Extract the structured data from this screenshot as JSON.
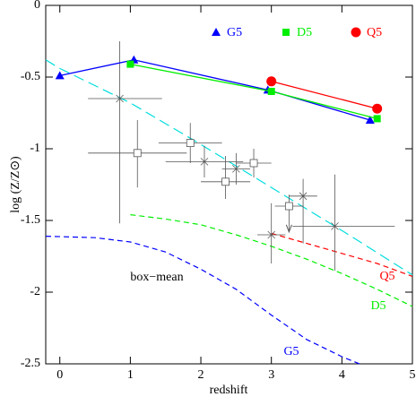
{
  "chart_data": {
    "type": "line",
    "xlabel": "redshift",
    "ylabel": "log (Z/Z⊙)",
    "xlim": [
      -0.2,
      5
    ],
    "ylim": [
      -2.5,
      0
    ],
    "xticks": [
      0,
      1,
      2,
      3,
      4,
      5
    ],
    "yticks": [
      -2.5,
      -2,
      -1.5,
      -1,
      -0.5,
      0
    ],
    "series": [
      {
        "name": "G5",
        "color": "#0000ff",
        "marker": "triangle",
        "x": [
          0,
          1.05,
          2.95,
          4.4
        ],
        "values": [
          -0.49,
          -0.38,
          -0.59,
          -0.8
        ]
      },
      {
        "name": "D5",
        "color": "#00ee00",
        "marker": "square",
        "x": [
          1,
          3,
          4.5
        ],
        "values": [
          -0.41,
          -0.6,
          -0.79
        ]
      },
      {
        "name": "Q5",
        "color": "#ff0000",
        "marker": "circle",
        "x": [
          3,
          4.5
        ],
        "values": [
          -0.53,
          -0.72
        ]
      }
    ],
    "curves": [
      {
        "color": "#00dddd",
        "dash": "12 6",
        "x": [
          -0.2,
          0,
          1,
          2,
          3,
          4,
          5
        ],
        "values": [
          -0.38,
          -0.44,
          -0.68,
          -0.97,
          -1.27,
          -1.57,
          -1.88
        ]
      },
      {
        "label": "G5",
        "color": "#0000ff",
        "dash": "6 4",
        "x": [
          -0.2,
          0.5,
          1,
          1.5,
          2,
          2.5,
          3,
          3.5,
          4,
          4.25
        ],
        "values": [
          -1.61,
          -1.62,
          -1.65,
          -1.72,
          -1.84,
          -1.98,
          -2.16,
          -2.33,
          -2.45,
          -2.5
        ]
      },
      {
        "label": "D5",
        "color": "#00ee00",
        "dash": "6 4",
        "x": [
          1,
          1.5,
          2,
          2.5,
          3,
          3.5,
          4,
          4.5,
          5
        ],
        "values": [
          -1.46,
          -1.49,
          -1.53,
          -1.6,
          -1.68,
          -1.77,
          -1.87,
          -1.98,
          -2.1
        ]
      },
      {
        "label": "Q5",
        "color": "#ff0000",
        "dash": "6 4",
        "x": [
          3,
          3.5,
          4,
          4.5,
          5
        ],
        "values": [
          -1.59,
          -1.66,
          -1.73,
          -1.8,
          -1.89
        ]
      }
    ],
    "annotation": "box−mean",
    "observations": [
      {
        "marker": "cross",
        "color": "#555555",
        "x": [
          0.85,
          2.05,
          2.5,
          3.0,
          3.45,
          3.9
        ],
        "values": [
          -0.65,
          -1.09,
          -1.14,
          -1.6,
          -1.33,
          -1.54
        ],
        "x_low": [
          0.4,
          1.5,
          2.3,
          2.8,
          3.25,
          3.3
        ],
        "x_high": [
          1.45,
          2.6,
          2.7,
          3.2,
          3.65,
          4.75
        ],
        "y_low": [
          -1.52,
          -1.2,
          -1.25,
          -1.8,
          -1.66,
          -1.85
        ],
        "y_high": [
          -0.25,
          -0.98,
          -1.03,
          -1.38,
          -1.21,
          -1.18
        ]
      },
      {
        "marker": "square",
        "color": "#555555",
        "x": [
          1.1,
          1.85,
          2.35,
          2.75,
          3.25
        ],
        "values": [
          -1.03,
          -0.96,
          -1.23,
          -1.1,
          -1.4
        ],
        "x_low": [
          0.4,
          1.4,
          2.0,
          2.5,
          3.05
        ],
        "x_high": [
          1.8,
          2.3,
          2.7,
          3.0,
          3.45
        ],
        "y_low": [
          -1.27,
          -1.1,
          -1.35,
          -1.2,
          -1.58
        ],
        "y_high": [
          -0.8,
          -0.82,
          -1.05,
          -1.0,
          -1.32
        ],
        "upper_limit": [
          false,
          false,
          false,
          false,
          true
        ]
      }
    ]
  }
}
